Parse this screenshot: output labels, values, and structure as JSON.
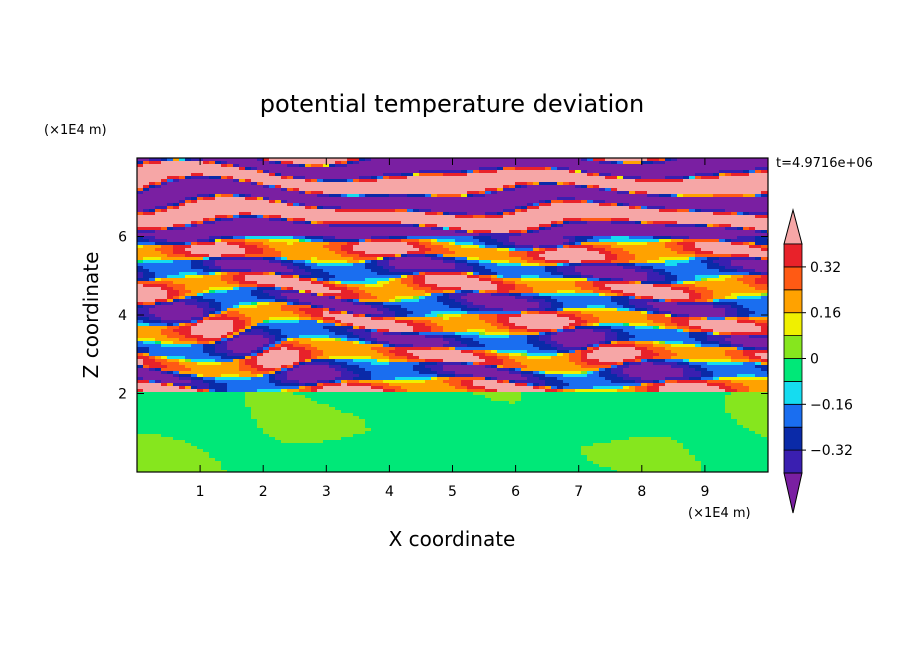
{
  "chart_data": {
    "type": "heatmap",
    "title": "potential temperature deviation",
    "xlabel": "X coordinate",
    "ylabel": "Z coordinate",
    "x_unit": "(×1E4 m)",
    "y_unit": "(×1E4 m)",
    "time_label": "t=4.9716e+06",
    "xlim": [
      0,
      10
    ],
    "ylim": [
      0,
      8
    ],
    "x_ticks": [
      "1",
      "2",
      "3",
      "4",
      "5",
      "6",
      "7",
      "8",
      "9"
    ],
    "y_ticks": [
      "2",
      "4",
      "6"
    ],
    "colorbar": {
      "levels": [
        -0.4,
        -0.32,
        -0.24,
        -0.16,
        -0.08,
        0,
        0.08,
        0.16,
        0.24,
        0.32,
        0.4
      ],
      "tick_labels": [
        "0.32",
        "0.16",
        "0",
        "−0.16",
        "−0.32"
      ],
      "tick_values": [
        0.32,
        0.16,
        0,
        -0.16,
        -0.32
      ],
      "colors": [
        "#7a1fa2",
        "#3a1fb0",
        "#0a2aa8",
        "#1a6ef0",
        "#15dcf0",
        "#00e878",
        "#86e61e",
        "#f0f000",
        "#ffa200",
        "#ff5a14",
        "#e8222a",
        "#f6a6a6"
      ],
      "extend": "both"
    },
    "regions": {
      "stratified_layer_bottom": 2.0,
      "note": "stratified banded layer above z=2, weakly perturbed near-zero field below"
    }
  }
}
